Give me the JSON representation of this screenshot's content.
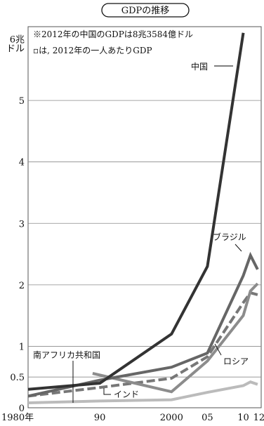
{
  "chart_data": {
    "type": "line",
    "title": "GDPの推移",
    "ylabel": "6兆\nドル",
    "ylim": [
      0,
      6.2
    ],
    "xlim": [
      1980,
      2012.5
    ],
    "y_ticks": [
      {
        "value": 0,
        "label": "0"
      },
      {
        "value": 0.5,
        "label": "0.5"
      },
      {
        "value": 1,
        "label": "1"
      },
      {
        "value": 2,
        "label": "2"
      },
      {
        "value": 3,
        "label": "3"
      },
      {
        "value": 4,
        "label": "4"
      },
      {
        "value": 5,
        "label": "5"
      },
      {
        "value": 6,
        "label": "6兆"
      }
    ],
    "x_ticks": [
      {
        "value": 1980,
        "label": "1980年"
      },
      {
        "value": 1990,
        "label": "90"
      },
      {
        "value": 2000,
        "label": "2000"
      },
      {
        "value": 2005,
        "label": "05"
      },
      {
        "value": 2010,
        "label": "10"
      },
      {
        "value": 2012,
        "label": "12"
      }
    ],
    "grid": true,
    "notes": [
      "※2012年の中国のGDPは8兆3584億ドル",
      "▫は, 2012年の一人あたりGDP"
    ],
    "series": [
      {
        "name": "中国",
        "style": "solid",
        "color": "#333333",
        "points": [
          [
            1980,
            0.3
          ],
          [
            1990,
            0.4
          ],
          [
            2000,
            1.2
          ],
          [
            2005,
            2.3
          ],
          [
            2010,
            6.1
          ]
        ]
      },
      {
        "name": "ブラジル",
        "style": "solid",
        "color": "#666666",
        "points": [
          [
            1980,
            0.19
          ],
          [
            1990,
            0.45
          ],
          [
            2000,
            0.66
          ],
          [
            2005,
            0.89
          ],
          [
            2010,
            2.15
          ],
          [
            2011,
            2.48
          ],
          [
            2012,
            2.25
          ]
        ]
      },
      {
        "name": "ロシア",
        "style": "solid",
        "color": "#8c8c8c",
        "points": [
          [
            1989,
            0.56
          ],
          [
            2000,
            0.26
          ],
          [
            2005,
            0.76
          ],
          [
            2010,
            1.5
          ],
          [
            2011,
            1.9
          ],
          [
            2012,
            2.02
          ]
        ]
      },
      {
        "name": "インド",
        "style": "dashed",
        "color": "#777777",
        "points": [
          [
            1980,
            0.19
          ],
          [
            1990,
            0.33
          ],
          [
            2000,
            0.48
          ],
          [
            2005,
            0.83
          ],
          [
            2010,
            1.71
          ],
          [
            2011,
            1.87
          ],
          [
            2012,
            1.84
          ]
        ]
      },
      {
        "name": "南アフリカ共和国",
        "style": "solid",
        "color": "#bbbbbb",
        "points": [
          [
            1980,
            0.08
          ],
          [
            1990,
            0.11
          ],
          [
            2000,
            0.13
          ],
          [
            2005,
            0.25
          ],
          [
            2010,
            0.36
          ],
          [
            2011,
            0.42
          ],
          [
            2012,
            0.38
          ]
        ]
      }
    ]
  }
}
